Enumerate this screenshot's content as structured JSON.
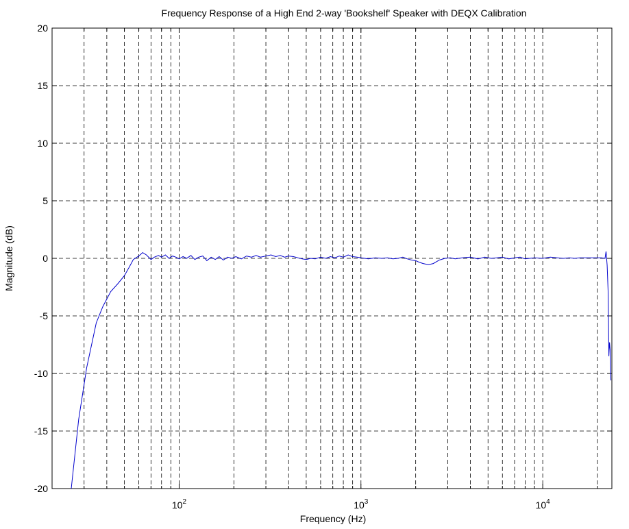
{
  "chart_data": {
    "type": "line",
    "title": "Frequency Response of a High End 2-way 'Bookshelf' Speaker with DEQX Calibration",
    "xlabel": "Frequency (Hz)",
    "ylabel": "Magnitude (dB)",
    "xscale": "log",
    "xlim": [
      20,
      24000
    ],
    "ylim": [
      -20,
      20
    ],
    "grid": true,
    "xticks": [
      100,
      1000,
      10000
    ],
    "xtick_labels": [
      {
        "base": "10",
        "exp": "2"
      },
      {
        "base": "10",
        "exp": "3"
      },
      {
        "base": "10",
        "exp": "4"
      }
    ],
    "yticks": [
      -20,
      -15,
      -10,
      -5,
      0,
      5,
      10,
      15,
      20
    ],
    "ytick_labels": [
      "-20",
      "-15",
      "-10",
      "-5",
      "0",
      "5",
      "10",
      "15",
      "20"
    ],
    "series": [
      {
        "color": "#0000cc",
        "x": [
          25.5,
          28,
          31,
          35,
          38,
          42,
          46,
          50,
          53,
          56,
          60,
          63,
          66,
          70,
          73,
          77,
          80,
          84,
          88,
          92,
          96,
          100,
          105,
          110,
          116,
          122,
          128,
          135,
          142,
          150,
          158,
          166,
          175,
          185,
          195,
          205,
          220,
          235,
          250,
          265,
          280,
          300,
          320,
          340,
          360,
          380,
          400,
          425,
          450,
          475,
          500,
          530,
          560,
          600,
          640,
          680,
          720,
          760,
          800,
          850,
          900,
          950,
          1000,
          1100,
          1200,
          1300,
          1400,
          1500,
          1600,
          1700,
          1800,
          1900,
          2000,
          2100,
          2200,
          2350,
          2500,
          2700,
          2900,
          3100,
          3300,
          3600,
          4000,
          4400,
          4800,
          5200,
          5600,
          6000,
          6500,
          7000,
          7500,
          8000,
          9000,
          10000,
          11000,
          12000,
          13000,
          14000,
          15000,
          16000,
          18000,
          20000,
          21000,
          22000,
          22300,
          22600,
          22900,
          23100,
          23300,
          23500,
          23700
        ],
        "y": [
          -20,
          -14,
          -9.5,
          -5.6,
          -4.2,
          -2.9,
          -2.2,
          -1.5,
          -0.8,
          -0.1,
          0.2,
          0.5,
          0.3,
          -0.1,
          0.1,
          0.25,
          0.1,
          0.3,
          0.0,
          0.2,
          0.1,
          -0.05,
          0.15,
          0.0,
          0.25,
          -0.1,
          0.1,
          0.2,
          -0.2,
          0.1,
          -0.1,
          0.15,
          -0.15,
          0.1,
          0.0,
          0.15,
          -0.05,
          0.2,
          0.1,
          0.25,
          0.1,
          0.2,
          0.3,
          0.15,
          0.25,
          0.1,
          0.2,
          0.15,
          0.05,
          -0.05,
          -0.1,
          0.0,
          -0.05,
          0.1,
          0.0,
          0.15,
          0.05,
          0.2,
          0.1,
          0.3,
          0.15,
          0.1,
          0.05,
          -0.05,
          0.05,
          0.0,
          0.05,
          -0.05,
          0.0,
          0.1,
          -0.05,
          -0.15,
          -0.2,
          -0.35,
          -0.45,
          -0.55,
          -0.45,
          -0.15,
          0.0,
          0.05,
          -0.05,
          0.05,
          0.1,
          -0.05,
          0.1,
          0.0,
          0.05,
          0.1,
          -0.05,
          0.05,
          0.1,
          -0.05,
          0.05,
          0.0,
          0.1,
          0.05,
          0.0,
          0.05,
          0.0,
          0.05,
          0.05,
          0.05,
          0.05,
          0.0,
          0.6,
          -0.6,
          -3.0,
          -8.5,
          -7.3,
          -8.0,
          -10.6
        ]
      }
    ]
  }
}
